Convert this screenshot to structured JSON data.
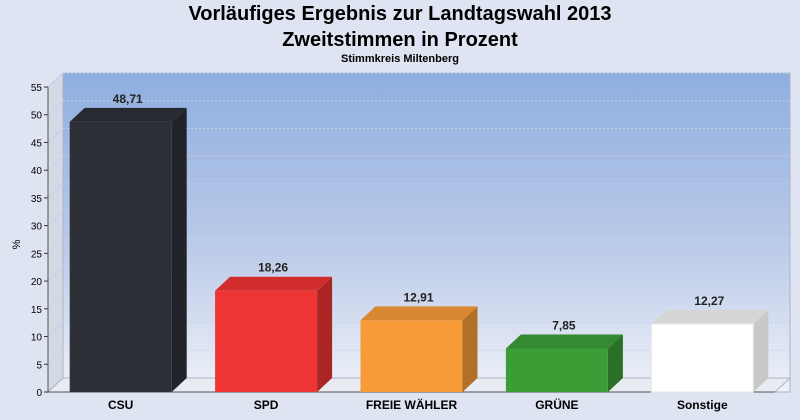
{
  "chart_data": {
    "type": "bar",
    "title": "Vorläufiges Ergebnis zur Landtagswahl 2013",
    "subtitle_line": "Zweitstimmen in Prozent",
    "subtitle": "Stimmkreis Miltenberg",
    "xlabel": "",
    "ylabel": "%",
    "ylim": [
      0,
      55
    ],
    "yticks": [
      0,
      5,
      10,
      15,
      20,
      25,
      30,
      35,
      40,
      45,
      50,
      55
    ],
    "grid": true,
    "categories": [
      "CSU",
      "SPD",
      "FREIE WÄHLER",
      "GRÜNE",
      "Sonstige"
    ],
    "values": [
      48.71,
      18.26,
      12.91,
      7.85,
      12.27
    ],
    "value_labels": [
      "48,71",
      "18,26",
      "12,91",
      "7,85",
      "12,27"
    ],
    "colors": [
      "#2e3038",
      "#ef3434",
      "#f79a38",
      "#3c9c36",
      "#ffffff"
    ]
  }
}
